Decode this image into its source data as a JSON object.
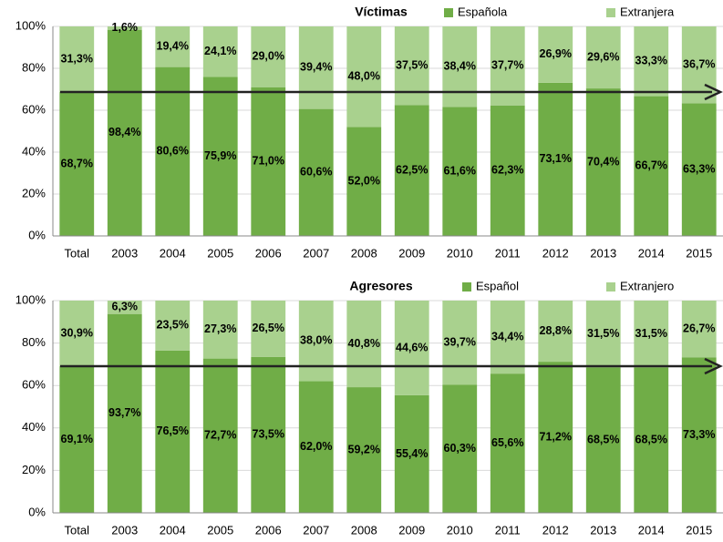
{
  "chart_data": [
    {
      "type": "stacked_bar",
      "title": "Víctimas",
      "categories": [
        "Total",
        "2003",
        "2004",
        "2005",
        "2006",
        "2007",
        "2008",
        "2009",
        "2010",
        "2011",
        "2012",
        "2013",
        "2014",
        "2015"
      ],
      "series": [
        {
          "name": "Española",
          "color": "#70ad47",
          "values": [
            68.7,
            98.4,
            80.6,
            75.9,
            71.0,
            60.6,
            52.0,
            62.5,
            61.6,
            62.3,
            73.1,
            70.4,
            66.7,
            63.3
          ],
          "value_labels": [
            "68,7%",
            "98,4%",
            "80,6%",
            "75,9%",
            "71,0%",
            "60,6%",
            "52,0%",
            "62,5%",
            "61,6%",
            "62,3%",
            "73,1%",
            "70,4%",
            "66,7%",
            "63,3%"
          ]
        },
        {
          "name": "Extranjera",
          "color": "#a9d18e",
          "values": [
            31.3,
            1.6,
            19.4,
            24.1,
            29.0,
            39.4,
            48.0,
            37.5,
            38.4,
            37.7,
            26.9,
            29.6,
            33.3,
            36.7
          ],
          "value_labels": [
            "31,3%",
            "1,6%",
            "19,4%",
            "24,1%",
            "29,0%",
            "39,4%",
            "48,0%",
            "37,5%",
            "38,4%",
            "37,7%",
            "26,9%",
            "29,6%",
            "33,3%",
            "36,7%"
          ]
        }
      ],
      "ylim": [
        0,
        100
      ],
      "yticks": [
        {
          "value": 0,
          "label": "0%"
        },
        {
          "value": 20,
          "label": "20%"
        },
        {
          "value": 40,
          "label": "40%"
        },
        {
          "value": 60,
          "label": "60%"
        },
        {
          "value": 80,
          "label": "80%"
        },
        {
          "value": 100,
          "label": "100%"
        }
      ],
      "grid": true
    },
    {
      "type": "stacked_bar",
      "title": "Agresores",
      "categories": [
        "Total",
        "2003",
        "2004",
        "2005",
        "2006",
        "2007",
        "2008",
        "2009",
        "2010",
        "2011",
        "2012",
        "2013",
        "2014",
        "2015"
      ],
      "series": [
        {
          "name": "Español",
          "color": "#70ad47",
          "values": [
            69.1,
            93.7,
            76.5,
            72.7,
            73.5,
            62.0,
            59.2,
            55.4,
            60.3,
            65.6,
            71.2,
            68.5,
            68.5,
            73.3
          ],
          "value_labels": [
            "69,1%",
            "93,7%",
            "76,5%",
            "72,7%",
            "73,5%",
            "62,0%",
            "59,2%",
            "55,4%",
            "60,3%",
            "65,6%",
            "71,2%",
            "68,5%",
            "68,5%",
            "73,3%"
          ]
        },
        {
          "name": "Extranjero",
          "color": "#a9d18e",
          "values": [
            30.9,
            6.3,
            23.5,
            27.3,
            26.5,
            38.0,
            40.8,
            44.6,
            39.7,
            34.4,
            28.8,
            31.5,
            31.5,
            26.7
          ],
          "value_labels": [
            "30,9%",
            "6,3%",
            "23,5%",
            "27,3%",
            "26,5%",
            "38,0%",
            "40,8%",
            "44,6%",
            "39,7%",
            "34,4%",
            "28,8%",
            "31,5%",
            "31,5%",
            "26,7%"
          ]
        }
      ],
      "ylim": [
        0,
        100
      ],
      "yticks": [
        {
          "value": 0,
          "label": "0%"
        },
        {
          "value": 20,
          "label": "20%"
        },
        {
          "value": 40,
          "label": "40%"
        },
        {
          "value": 60,
          "label": "60%"
        },
        {
          "value": 80,
          "label": "80%"
        },
        {
          "value": 100,
          "label": "100%"
        }
      ],
      "grid": true
    }
  ]
}
